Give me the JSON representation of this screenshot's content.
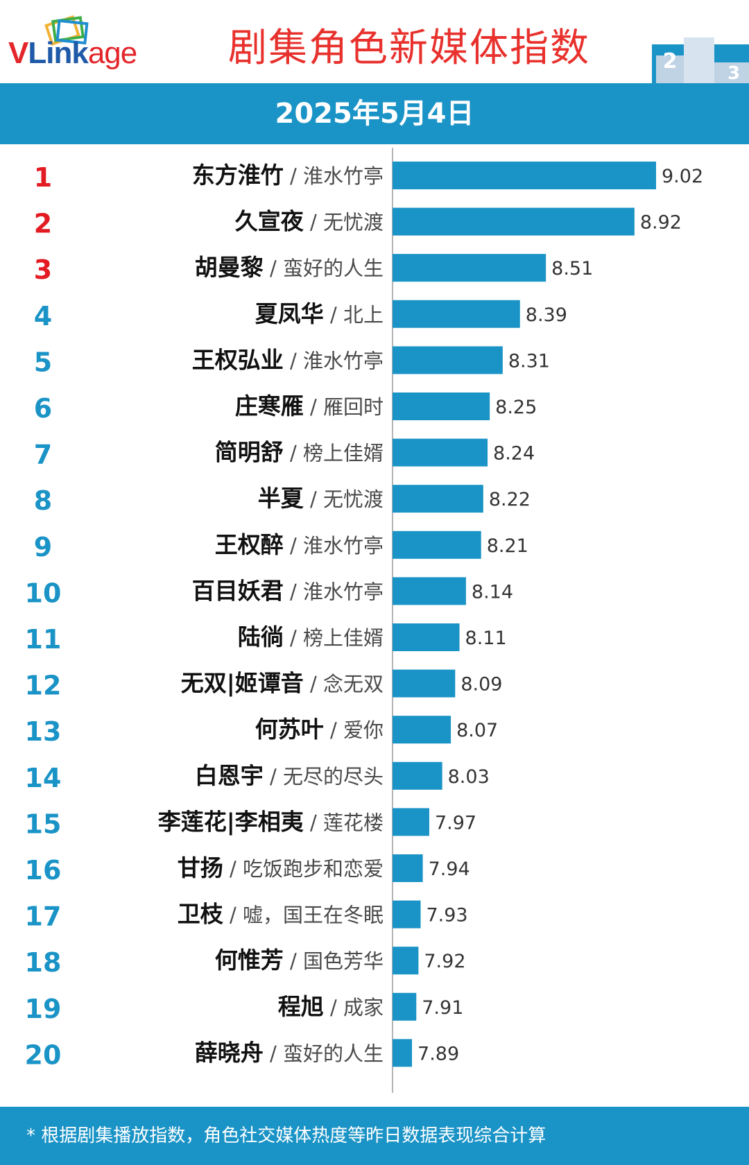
{
  "header": {
    "logo_text": "VLinkage",
    "logo_part_v": "V",
    "logo_part_link": "Link",
    "logo_part_age": "age",
    "title": "剧集角色新媒体指数"
  },
  "date": "2025年5月4日",
  "colors": {
    "accent": "#1a93c6",
    "bar": "#1a93c6",
    "rank_top3": "#e31b23",
    "rank_other": "#1a93c6",
    "title": "#e8312d"
  },
  "chart_data": {
    "type": "bar",
    "orientation": "horizontal",
    "title": "剧集角色新媒体指数",
    "subtitle": "2025年5月4日",
    "xlabel": "",
    "ylabel": "",
    "xlim": [
      7.8,
      9.1
    ],
    "grid": false,
    "categories": [
      {
        "rank": "1",
        "character": "东方淮竹",
        "drama": "淮水竹亭"
      },
      {
        "rank": "2",
        "character": "久宣夜",
        "drama": "无忧渡"
      },
      {
        "rank": "3",
        "character": "胡曼黎",
        "drama": "蛮好的人生"
      },
      {
        "rank": "4",
        "character": "夏凤华",
        "drama": "北上"
      },
      {
        "rank": "5",
        "character": "王权弘业",
        "drama": "淮水竹亭"
      },
      {
        "rank": "6",
        "character": "庄寒雁",
        "drama": "雁回时"
      },
      {
        "rank": "7",
        "character": "简明舒",
        "drama": "榜上佳婿"
      },
      {
        "rank": "8",
        "character": "半夏",
        "drama": "无忧渡"
      },
      {
        "rank": "9",
        "character": "王权醉",
        "drama": "淮水竹亭"
      },
      {
        "rank": "10",
        "character": "百目妖君",
        "drama": "淮水竹亭"
      },
      {
        "rank": "11",
        "character": "陆徜",
        "drama": "榜上佳婿"
      },
      {
        "rank": "12",
        "character": "无双|姬谭音",
        "drama": "念无双"
      },
      {
        "rank": "13",
        "character": "何苏叶",
        "drama": "爱你"
      },
      {
        "rank": "14",
        "character": "白恩宇",
        "drama": "无尽的尽头"
      },
      {
        "rank": "15",
        "character": "李莲花|李相夷",
        "drama": "莲花楼"
      },
      {
        "rank": "16",
        "character": "甘扬",
        "drama": "吃饭跑步和恋爱"
      },
      {
        "rank": "17",
        "character": "卫枝",
        "drama": "嘘，国王在冬眠"
      },
      {
        "rank": "18",
        "character": "何惟芳",
        "drama": "国色芳华"
      },
      {
        "rank": "19",
        "character": "程旭",
        "drama": "成家"
      },
      {
        "rank": "20",
        "character": "薛晓舟",
        "drama": "蛮好的人生"
      }
    ],
    "values": [
      9.02,
      8.92,
      8.51,
      8.39,
      8.31,
      8.25,
      8.24,
      8.22,
      8.21,
      8.14,
      8.11,
      8.09,
      8.07,
      8.03,
      7.97,
      7.94,
      7.93,
      7.92,
      7.91,
      7.89
    ],
    "value_labels": [
      "9.02",
      "8.92",
      "8.51",
      "8.39",
      "8.31",
      "8.25",
      "8.24",
      "8.22",
      "8.21",
      "8.14",
      "8.11",
      "8.09",
      "8.07",
      "8.03",
      "7.97",
      "7.94",
      "7.93",
      "7.92",
      "7.91",
      "7.89"
    ]
  },
  "footer": {
    "note": "* 根据剧集播放指数，角色社交媒体热度等昨日数据表现综合计算"
  }
}
